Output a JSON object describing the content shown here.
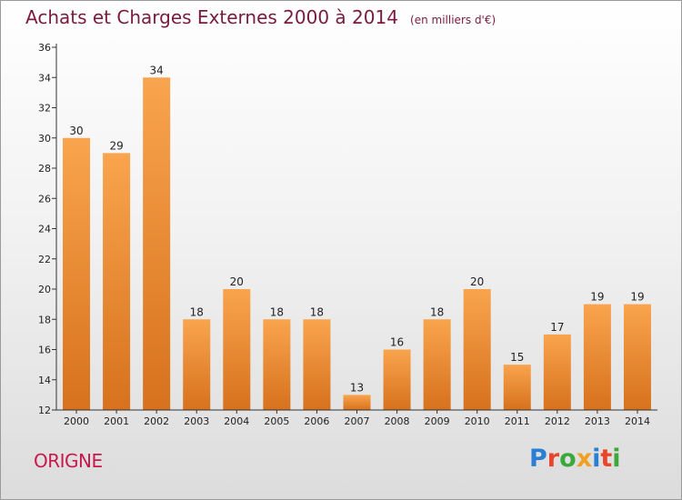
{
  "header": {
    "title": "Achats et Charges Externes 2000 à 2014",
    "unit": "(en milliers d'€)"
  },
  "footer": {
    "commune": "ORIGNE",
    "logo_letters": [
      {
        "char": "P",
        "color": "#2a7fd4"
      },
      {
        "char": "r",
        "color": "#e8452a"
      },
      {
        "char": "o",
        "color": "#3aa83a"
      },
      {
        "char": "x",
        "color": "#f0a020"
      },
      {
        "char": "i",
        "color": "#2a7fd4"
      },
      {
        "char": "t",
        "color": "#e8452a"
      },
      {
        "char": "i",
        "color": "#3aa83a"
      }
    ]
  },
  "colors": {
    "bar_light": "#f9a44e",
    "bar_dark": "#d7711d",
    "axis": "#333333",
    "grid": "#c8c8c8"
  },
  "chart_data": {
    "type": "bar",
    "title": "Achats et Charges Externes 2000 à 2014",
    "subtitle": "(en milliers d'€)",
    "xlabel": "",
    "ylabel": "",
    "categories": [
      "2000",
      "2001",
      "2002",
      "2003",
      "2004",
      "2005",
      "2006",
      "2007",
      "2008",
      "2009",
      "2010",
      "2011",
      "2012",
      "2013",
      "2014"
    ],
    "values": [
      30,
      29,
      34,
      18,
      20,
      18,
      18,
      13,
      16,
      18,
      20,
      15,
      17,
      19,
      19
    ],
    "ylim": [
      12,
      36
    ],
    "yticks": [
      12,
      14,
      16,
      18,
      20,
      22,
      24,
      26,
      28,
      30,
      32,
      34,
      36
    ],
    "grid": false,
    "legend": "none"
  }
}
